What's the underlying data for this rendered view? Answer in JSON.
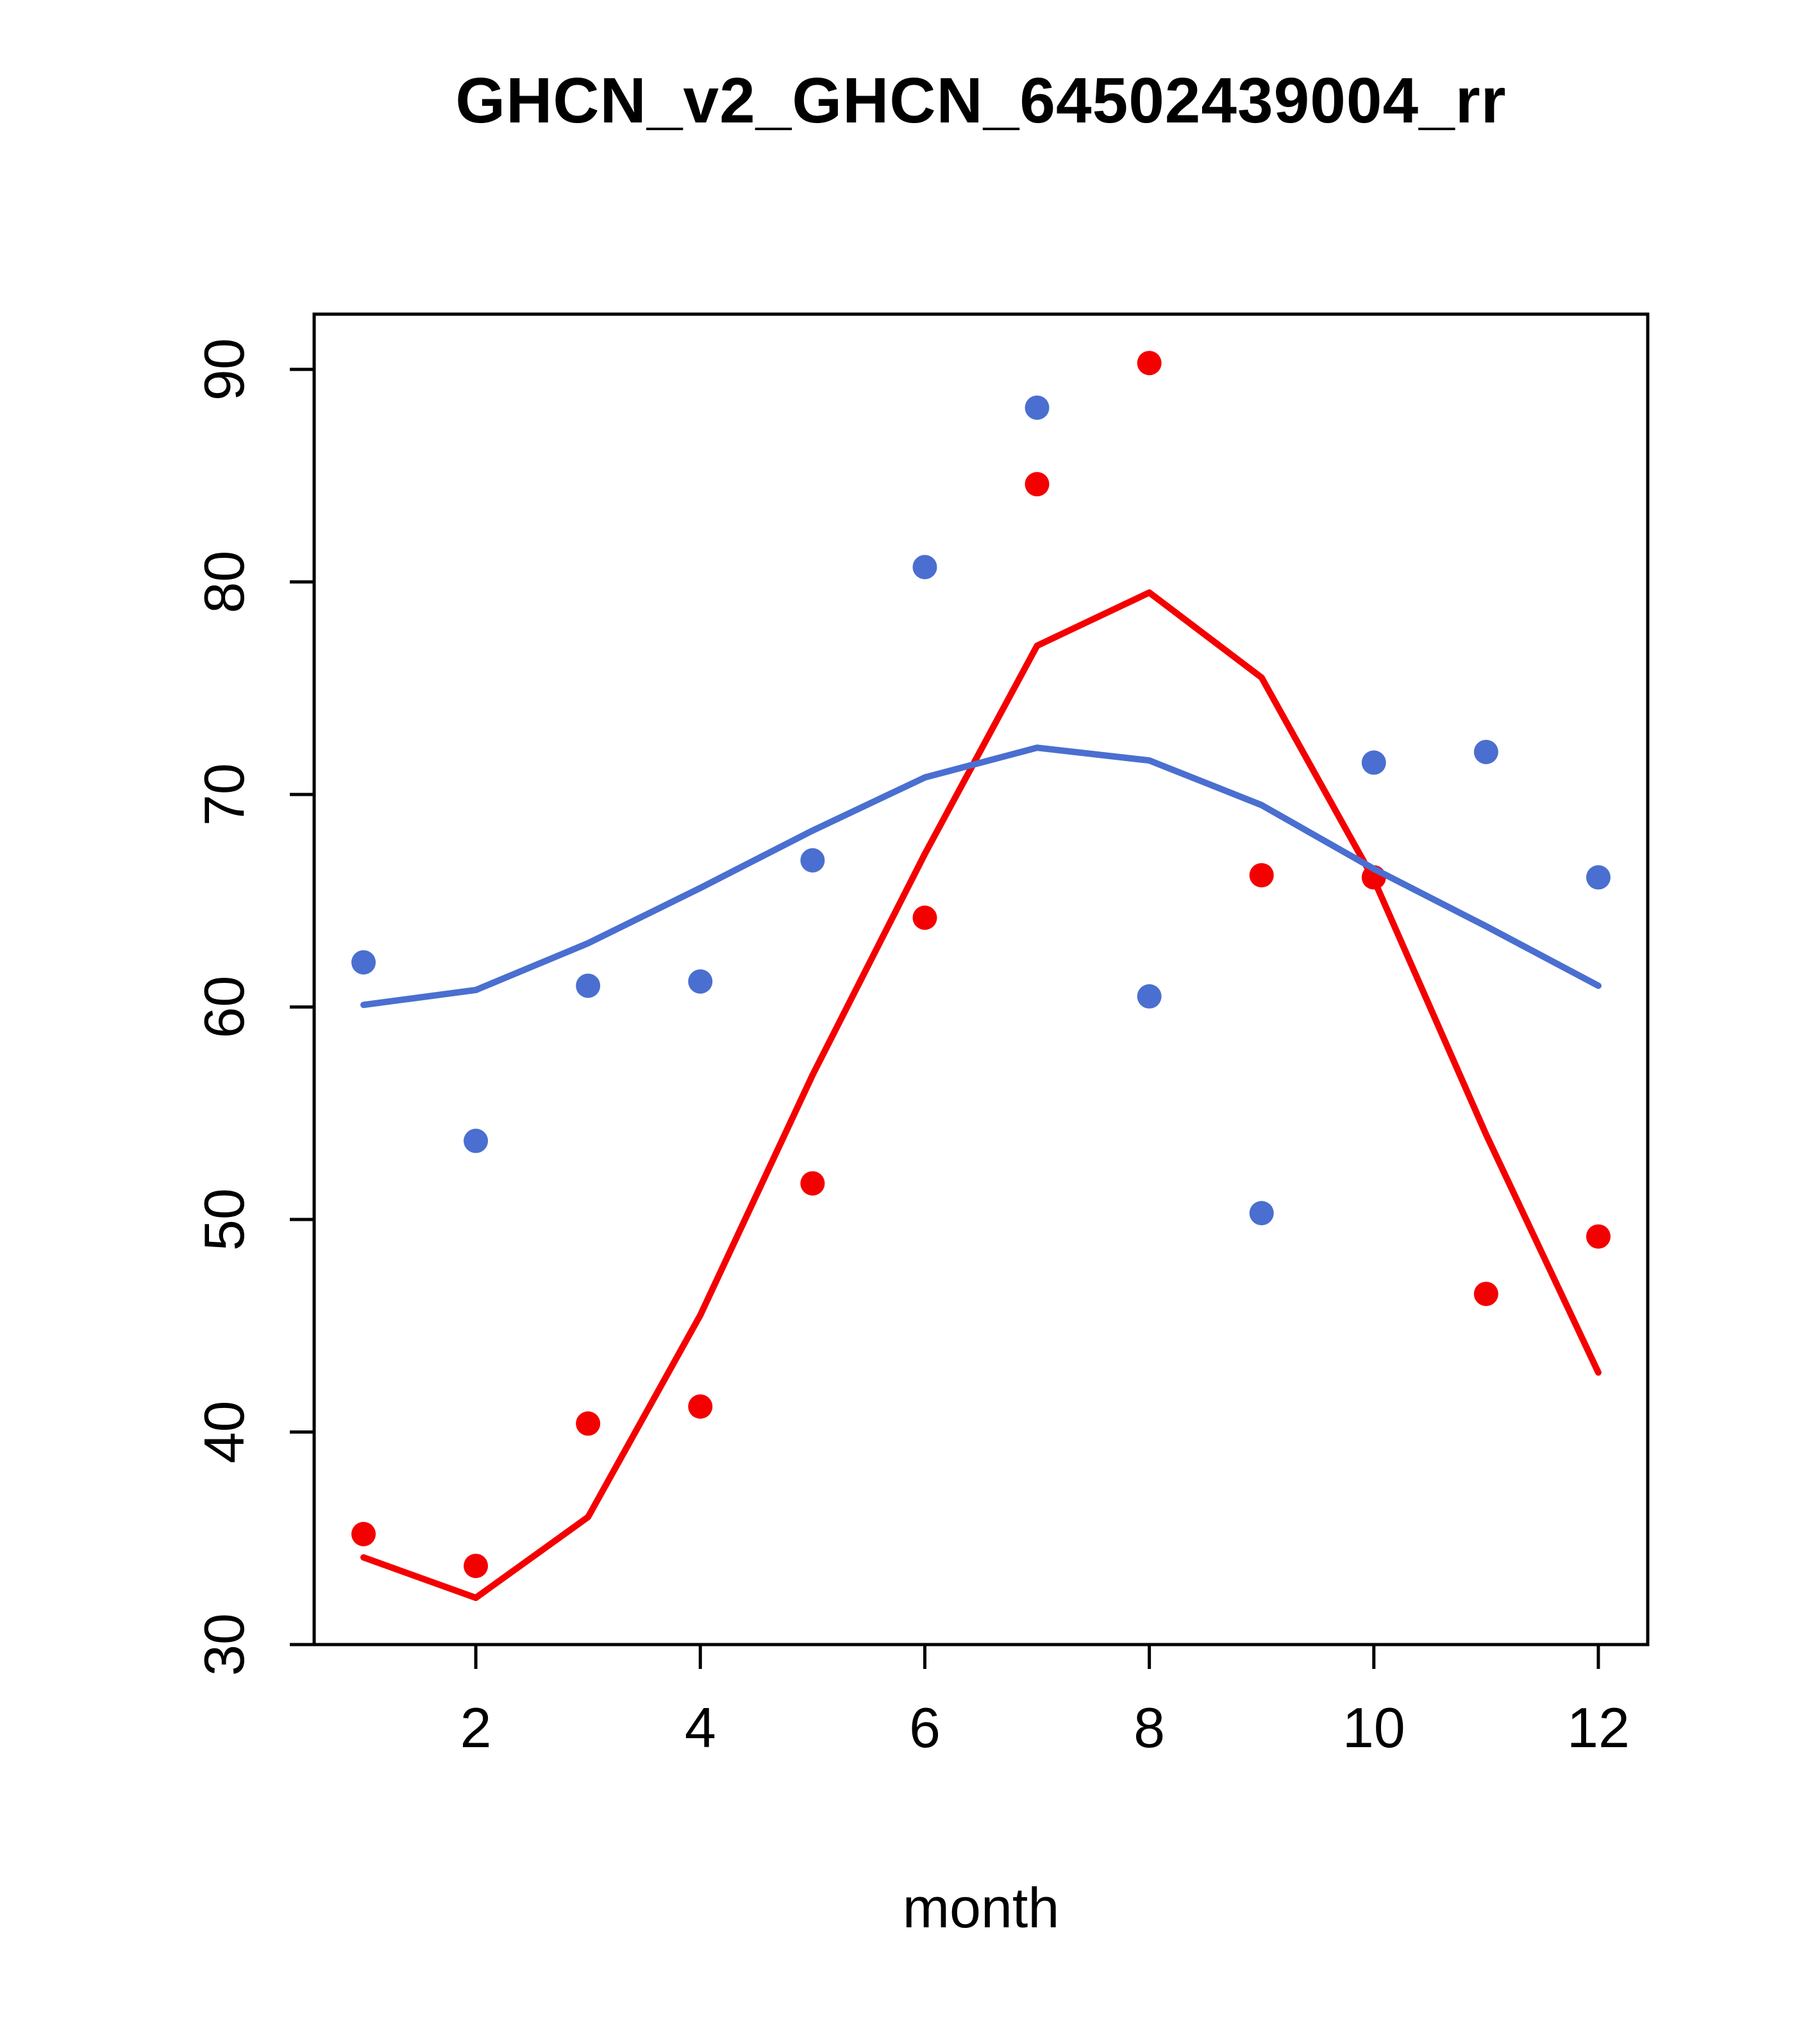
{
  "title": "GHCN_v2_GHCN_64502439004_rr",
  "xlabel": "month",
  "chart_data": {
    "type": "scatter",
    "title": "GHCN_v2_GHCN_64502439004_rr",
    "xlabel": "month",
    "ylabel": "",
    "grid": false,
    "legend": "none",
    "xlim": [
      0.56,
      12.44
    ],
    "ylim": [
      30,
      92.6
    ],
    "x_ticks": [
      2,
      4,
      6,
      8,
      10,
      12
    ],
    "y_ticks": [
      30,
      40,
      50,
      60,
      70,
      80,
      90
    ],
    "x": [
      1,
      2,
      3,
      4,
      5,
      6,
      7,
      8,
      9,
      10,
      11,
      12
    ],
    "colors": {
      "red": "#f40000",
      "blue": "#4a6fd0"
    },
    "series": [
      {
        "name": "red-points",
        "kind": "points",
        "color": "#f40000",
        "values": [
          35.2,
          33.7,
          40.4,
          41.2,
          51.7,
          64.2,
          84.6,
          90.3,
          66.2,
          66.1,
          46.5,
          49.2
        ]
      },
      {
        "name": "red-line",
        "kind": "line",
        "color": "#f40000",
        "values": [
          34.1,
          32.2,
          36.0,
          45.5,
          56.8,
          67.2,
          77.0,
          79.5,
          75.5,
          66.0,
          54.0,
          42.8
        ]
      },
      {
        "name": "blue-points",
        "kind": "points",
        "color": "#4a6fd0",
        "values": [
          62.1,
          53.7,
          61.0,
          61.2,
          66.9,
          80.7,
          88.2,
          60.5,
          50.3,
          71.5,
          72.0,
          66.1
        ]
      },
      {
        "name": "blue-line",
        "kind": "line",
        "color": "#4a6fd0",
        "values": [
          60.1,
          60.8,
          63.0,
          65.6,
          68.3,
          70.8,
          72.2,
          71.6,
          69.5,
          66.5,
          63.8,
          61.0
        ]
      }
    ]
  }
}
